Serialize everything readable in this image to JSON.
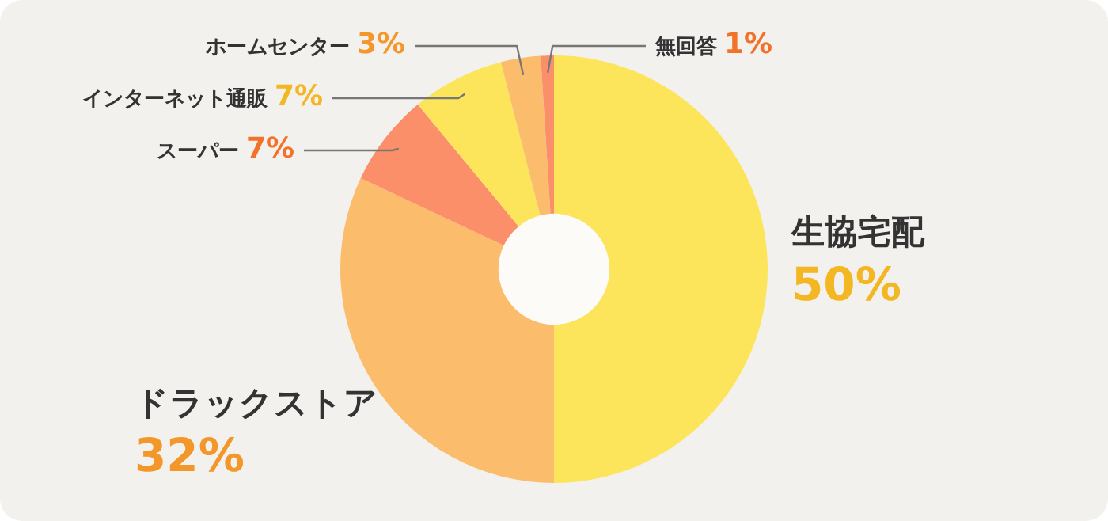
{
  "chart_data": {
    "type": "donut",
    "categories": [
      "生協宅配",
      "ドラックストア",
      "スーパー",
      "インターネット通販",
      "ホームセンター",
      "無回答"
    ],
    "values": [
      50,
      32,
      7,
      7,
      3,
      1
    ],
    "value_labels": [
      "50%",
      "32%",
      "7%",
      "7%",
      "3%",
      "1%"
    ],
    "colors": [
      "#fce55a",
      "#fbbd6b",
      "#fb8f6a",
      "#fce55a",
      "#fbbd6b",
      "#fb8f6a"
    ],
    "legend": false
  }
}
